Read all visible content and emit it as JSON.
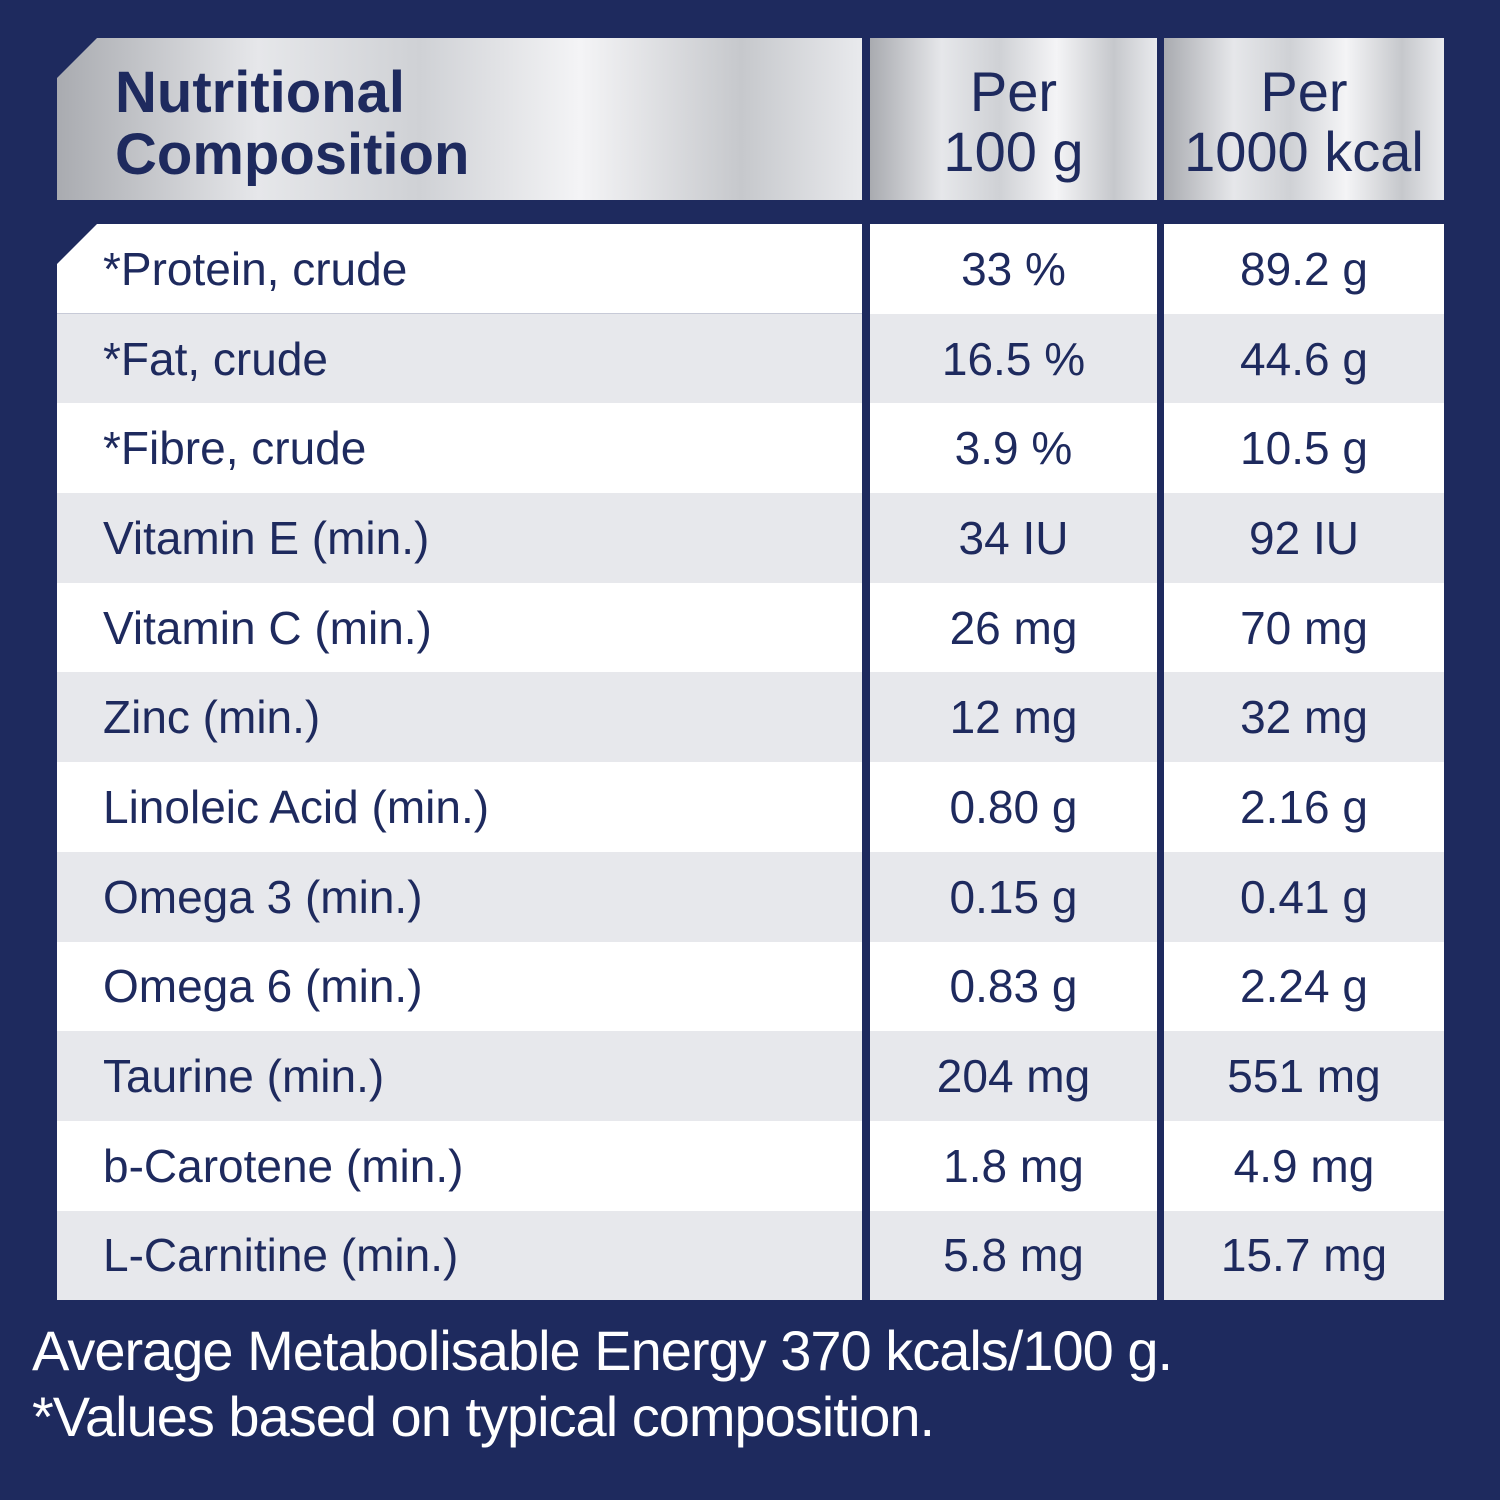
{
  "header": {
    "title_line1": "Nutritional",
    "title_line2": "Composition",
    "col1_line1": "Per",
    "col1_line2": "100 g",
    "col2_line1": "Per",
    "col2_line2": "1000 kcal"
  },
  "rows": [
    {
      "name": "*Protein, crude",
      "per100g": "33 %",
      "per1000kcal": "89.2 g"
    },
    {
      "name": "*Fat, crude",
      "per100g": "16.5 %",
      "per1000kcal": "44.6 g"
    },
    {
      "name": "*Fibre, crude",
      "per100g": "3.9 %",
      "per1000kcal": "10.5 g"
    },
    {
      "name": "Vitamin E (min.)",
      "per100g": "34 IU",
      "per1000kcal": "92 IU"
    },
    {
      "name": "Vitamin C (min.)",
      "per100g": "26 mg",
      "per1000kcal": "70 mg"
    },
    {
      "name": "Zinc (min.)",
      "per100g": "12 mg",
      "per1000kcal": "32 mg"
    },
    {
      "name": "Linoleic Acid (min.)",
      "per100g": "0.80 g",
      "per1000kcal": "2.16 g"
    },
    {
      "name": "Omega 3 (min.)",
      "per100g": "0.15 g",
      "per1000kcal": "0.41 g"
    },
    {
      "name": "Omega 6 (min.)",
      "per100g": "0.83 g",
      "per1000kcal": "2.24 g"
    },
    {
      "name": "Taurine (min.)",
      "per100g": "204 mg",
      "per1000kcal": "551 mg"
    },
    {
      "name": "b-Carotene (min.)",
      "per100g": "1.8 mg",
      "per1000kcal": "4.9 mg"
    },
    {
      "name": "L-Carnitine (min.)",
      "per100g": "5.8 mg",
      "per1000kcal": "15.7 mg"
    }
  ],
  "footer": {
    "energy_note": "Average Metabolisable Energy 370 kcals/100 g.",
    "values_note": "*Values based on typical composition."
  },
  "colors": {
    "background": "#1e2a5e",
    "text": "#1e2a5e",
    "row_alt": "#e7e8ec"
  }
}
